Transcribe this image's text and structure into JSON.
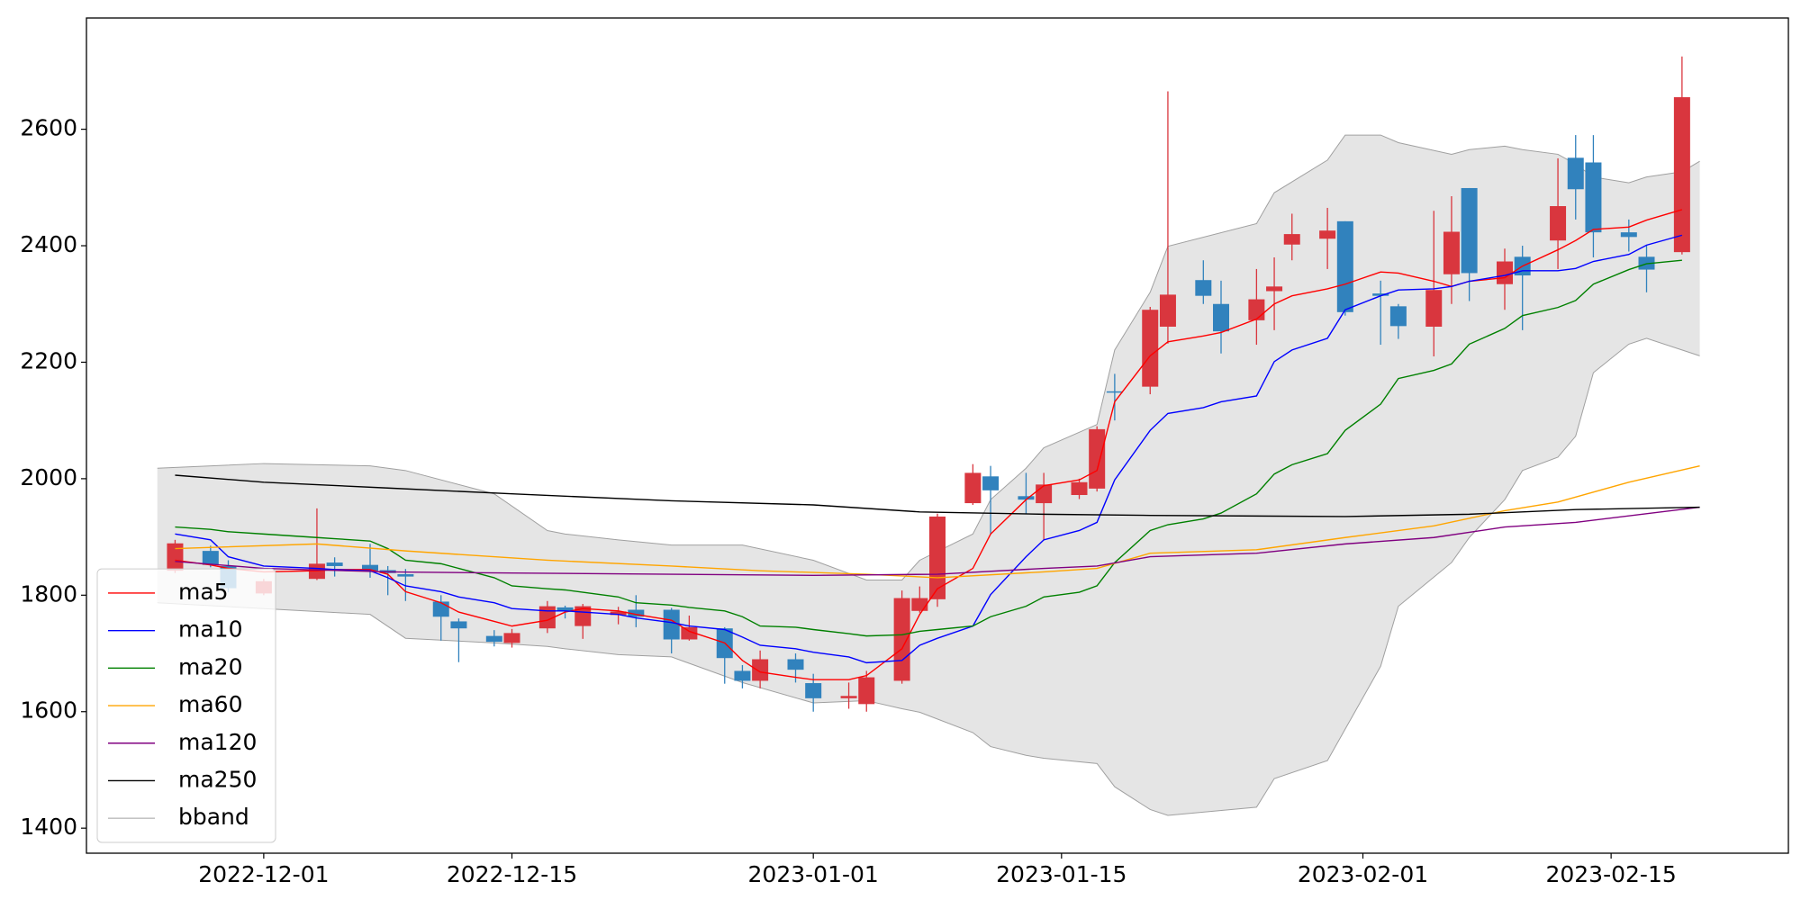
{
  "chart_data": {
    "type": "candlestick",
    "x": [
      "2022-11-26",
      "2022-11-28",
      "2022-11-29",
      "2022-12-01",
      "2022-12-04",
      "2022-12-05",
      "2022-12-07",
      "2022-12-08",
      "2022-12-09",
      "2022-12-11",
      "2022-12-12",
      "2022-12-14",
      "2022-12-15",
      "2022-12-17",
      "2022-12-18",
      "2022-12-19",
      "2022-12-21",
      "2022-12-22",
      "2022-12-24",
      "2022-12-25",
      "2022-12-27",
      "2022-12-28",
      "2022-12-29",
      "2022-12-31",
      "2023-01-01",
      "2023-01-03",
      "2023-01-04",
      "2023-01-06",
      "2023-01-07",
      "2023-01-08",
      "2023-01-10",
      "2023-01-11",
      "2023-01-13",
      "2023-01-14",
      "2023-01-16",
      "2023-01-17",
      "2023-01-18",
      "2023-01-20",
      "2023-01-21",
      "2023-01-23",
      "2023-01-24",
      "2023-01-26",
      "2023-01-27",
      "2023-01-28",
      "2023-01-30",
      "2023-01-31",
      "2023-02-02",
      "2023-02-03",
      "2023-02-05",
      "2023-02-06",
      "2023-02-07",
      "2023-02-09",
      "2023-02-10",
      "2023-02-12",
      "2023-02-13",
      "2023-02-14",
      "2023-02-16",
      "2023-02-17",
      "2023-02-19"
    ],
    "open": [
      1842,
      1876,
      1850,
      1803,
      1828,
      1856,
      1852,
      1843,
      1836,
      1789,
      1755,
      1730,
      1718,
      1743,
      1779,
      1747,
      1766,
      1775,
      1775,
      1724,
      1743,
      1670,
      1653,
      1690,
      1649,
      1623,
      1613,
      1653,
      1773,
      1793,
      1958,
      2004,
      1970,
      1958,
      1972,
      1983,
      2150,
      2158,
      2261,
      2341,
      2300,
      2272,
      2322,
      2402,
      2412,
      2442,
      2318,
      2296,
      2261,
      2351,
      2499,
      2334,
      2381,
      2409,
      2551,
      2543,
      2423,
      2381,
      2389
    ],
    "high": [
      1895,
      1885,
      1860,
      1828,
      1949,
      1865,
      1888,
      1850,
      1845,
      1800,
      1760,
      1740,
      1742,
      1790,
      1782,
      1785,
      1780,
      1800,
      1778,
      1765,
      1745,
      1680,
      1705,
      1700,
      1665,
      1650,
      1670,
      1808,
      1815,
      1940,
      2025,
      2022,
      2010,
      2010,
      2000,
      2090,
      2180,
      2295,
      2665,
      2375,
      2340,
      2360,
      2380,
      2455,
      2465,
      2442,
      2340,
      2300,
      2460,
      2485,
      2499,
      2395,
      2400,
      2550,
      2590,
      2590,
      2445,
      2400,
      2725
    ],
    "low": [
      1838,
      1848,
      1805,
      1800,
      1826,
      1832,
      1830,
      1800,
      1790,
      1722,
      1685,
      1712,
      1710,
      1735,
      1760,
      1725,
      1750,
      1745,
      1700,
      1722,
      1648,
      1640,
      1640,
      1650,
      1600,
      1605,
      1600,
      1648,
      1770,
      1780,
      1955,
      1905,
      1940,
      1895,
      1965,
      1978,
      2100,
      2145,
      2232,
      2300,
      2215,
      2230,
      2255,
      2375,
      2360,
      2280,
      2230,
      2240,
      2210,
      2300,
      2305,
      2290,
      2255,
      2360,
      2445,
      2380,
      2390,
      2320,
      2385
    ],
    "close": [
      1889,
      1852,
      1812,
      1824,
      1854,
      1850,
      1842,
      1838,
      1832,
      1763,
      1743,
      1720,
      1735,
      1781,
      1773,
      1781,
      1772,
      1763,
      1724,
      1745,
      1692,
      1653,
      1690,
      1672,
      1623,
      1627,
      1659,
      1795,
      1795,
      1935,
      2010,
      1980,
      1964,
      1990,
      1994,
      2085,
      2148,
      2290,
      2316,
      2314,
      2253,
      2308,
      2330,
      2420,
      2426,
      2286,
      2314,
      2262,
      2324,
      2424,
      2353,
      2373,
      2349,
      2468,
      2497,
      2423,
      2415,
      2359,
      2655
    ],
    "up_color": "#d9363e",
    "down_color": "#3182bd",
    "series": [
      {
        "name": "ma5",
        "color": "#ff0000",
        "values": [
          1860,
          1852,
          1846,
          1840,
          1842,
          1844,
          1844,
          1836,
          1806,
          1787,
          1771,
          1755,
          1747,
          1757,
          1771,
          1777,
          1773,
          1767,
          1757,
          1738,
          1718,
          1688,
          1668,
          1659,
          1655,
          1655,
          1662,
          1708,
          1767,
          1811,
          1846,
          1905,
          1964,
          1988,
          1998,
          2014,
          2132,
          2211,
          2235,
          2245,
          2251,
          2274,
          2300,
          2314,
          2326,
          2334,
          2355,
          2353,
          2339,
          2330,
          2339,
          2345,
          2365,
          2393,
          2409,
          2428,
          2432,
          2444,
          2462
        ]
      },
      {
        "name": "ma10",
        "color": "#0000ff",
        "values": [
          1905,
          1895,
          1866,
          1850,
          1846,
          1844,
          1842,
          1830,
          1816,
          1806,
          1797,
          1787,
          1777,
          1773,
          1773,
          1771,
          1767,
          1761,
          1753,
          1747,
          1741,
          1728,
          1714,
          1708,
          1702,
          1694,
          1684,
          1688,
          1714,
          1726,
          1747,
          1801,
          1866,
          1895,
          1911,
          1925,
          1998,
          2083,
          2112,
          2122,
          2132,
          2142,
          2201,
          2221,
          2241,
          2290,
          2314,
          2324,
          2326,
          2330,
          2339,
          2349,
          2357,
          2357,
          2361,
          2373,
          2385,
          2401,
          2418
        ]
      },
      {
        "name": "ma20",
        "color": "#008000",
        "values": [
          1917,
          1913,
          1909,
          1905,
          1899,
          1897,
          1893,
          1880,
          1860,
          1854,
          1846,
          1830,
          1816,
          1811,
          1809,
          1805,
          1797,
          1787,
          1783,
          1779,
          1773,
          1763,
          1747,
          1745,
          1741,
          1734,
          1730,
          1732,
          1738,
          1741,
          1747,
          1763,
          1781,
          1797,
          1805,
          1816,
          1856,
          1911,
          1921,
          1931,
          1941,
          1974,
          2008,
          2024,
          2043,
          2083,
          2128,
          2172,
          2186,
          2197,
          2231,
          2258,
          2280,
          2294,
          2306,
          2334,
          2359,
          2369,
          2375
        ]
      },
      {
        "name": "ma60",
        "color": "#ffa500",
        "x": [
          "2022-11-26",
          "2022-12-04",
          "2022-12-09",
          "2022-12-17",
          "2022-12-24",
          "2022-12-29",
          "2023-01-04",
          "2023-01-08",
          "2023-01-14",
          "2023-01-17",
          "2023-01-20",
          "2023-01-26",
          "2023-01-31",
          "2023-02-05",
          "2023-02-09",
          "2023-02-12",
          "2023-02-16",
          "2023-02-20"
        ],
        "values": [
          1880,
          1888,
          1876,
          1860,
          1850,
          1842,
          1836,
          1830,
          1840,
          1846,
          1872,
          1878,
          1899,
          1919,
          1945,
          1960,
          1994,
          2022
        ]
      },
      {
        "name": "ma120",
        "color": "#800080",
        "x": [
          "2022-11-26",
          "2022-12-01",
          "2022-12-08",
          "2022-12-15",
          "2022-12-24",
          "2023-01-01",
          "2023-01-08",
          "2023-01-14",
          "2023-01-17",
          "2023-01-20",
          "2023-01-26",
          "2023-01-31",
          "2023-02-05",
          "2023-02-09",
          "2023-02-13",
          "2023-02-20"
        ],
        "values": [
          1858,
          1846,
          1840,
          1838,
          1836,
          1834,
          1836,
          1846,
          1850,
          1866,
          1872,
          1888,
          1899,
          1917,
          1925,
          1951
        ]
      },
      {
        "name": "ma250",
        "color": "#000000",
        "x": [
          "2022-11-26",
          "2022-12-01",
          "2022-12-08",
          "2022-12-15",
          "2022-12-24",
          "2023-01-01",
          "2023-01-07",
          "2023-01-14",
          "2023-01-20",
          "2023-01-31",
          "2023-02-07",
          "2023-02-13",
          "2023-02-20"
        ],
        "values": [
          2006,
          1994,
          1984,
          1974,
          1962,
          1955,
          1943,
          1939,
          1937,
          1935,
          1939,
          1947,
          1951
        ]
      }
    ],
    "bband": {
      "name": "bband",
      "color": "#a0a0a0",
      "fill": "#e5e5e5",
      "x": [
        "2022-11-25",
        "2022-12-01",
        "2022-12-07",
        "2022-12-09",
        "2022-12-14",
        "2022-12-17",
        "2022-12-18",
        "2022-12-21",
        "2022-12-24",
        "2022-12-28",
        "2023-01-01",
        "2023-01-04",
        "2023-01-06",
        "2023-01-07",
        "2023-01-10",
        "2023-01-11",
        "2023-01-13",
        "2023-01-14",
        "2023-01-17",
        "2023-01-18",
        "2023-01-20",
        "2023-01-21",
        "2023-01-26",
        "2023-01-27",
        "2023-01-30",
        "2023-01-31",
        "2023-02-02",
        "2023-02-03",
        "2023-02-06",
        "2023-02-07",
        "2023-02-09",
        "2023-02-10",
        "2023-02-12",
        "2023-02-13",
        "2023-02-14",
        "2023-02-16",
        "2023-02-17",
        "2023-02-19",
        "2023-02-20"
      ],
      "upper": [
        2018,
        2026,
        2022,
        2014,
        1974,
        1911,
        1905,
        1895,
        1886,
        1886,
        1860,
        1826,
        1826,
        1860,
        1905,
        1964,
        2018,
        2053,
        2093,
        2221,
        2320,
        2399,
        2438,
        2491,
        2547,
        2590,
        2590,
        2577,
        2557,
        2565,
        2571,
        2565,
        2557,
        2540,
        2518,
        2508,
        2518,
        2527,
        2545
      ],
      "lower": [
        1787,
        1777,
        1767,
        1726,
        1718,
        1712,
        1708,
        1698,
        1694,
        1650,
        1615,
        1619,
        1605,
        1599,
        1564,
        1540,
        1525,
        1520,
        1511,
        1471,
        1432,
        1422,
        1436,
        1485,
        1516,
        1570,
        1678,
        1781,
        1856,
        1899,
        1964,
        2014,
        2037,
        2073,
        2182,
        2231,
        2241,
        2221,
        2211
      ]
    },
    "xlim": [
      "2022-11-21",
      "2023-02-25"
    ],
    "xticks": [
      "2022-12-01",
      "2022-12-15",
      "2023-01-01",
      "2023-01-15",
      "2023-02-01",
      "2023-02-15"
    ],
    "ylim": [
      1357,
      2791
    ],
    "yticks": [
      1400,
      1600,
      1800,
      2000,
      2200,
      2400,
      2600
    ],
    "legend": "lower left"
  }
}
